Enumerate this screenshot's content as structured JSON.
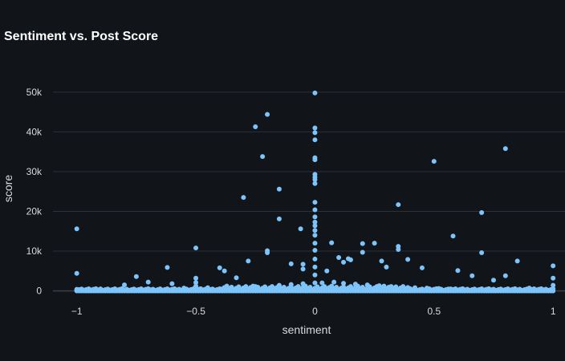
{
  "chart_data": {
    "type": "scatter",
    "title": "Sentiment vs. Post Score",
    "xlabel": "sentiment",
    "ylabel": "score",
    "xlim": [
      -1.1,
      1.05
    ],
    "ylim": [
      -1500,
      53000
    ],
    "xticks": [
      -1,
      -0.5,
      0,
      0.5,
      1
    ],
    "xtick_labels": [
      "−1",
      "−0.5",
      "0",
      "0.5",
      "1"
    ],
    "yticks": [
      0,
      10000,
      20000,
      30000,
      40000,
      50000
    ],
    "ytick_labels": [
      "0",
      "10k",
      "20k",
      "30k",
      "40k",
      "50k"
    ],
    "grid": true,
    "marker_color": "#7cc4fa",
    "series": [
      {
        "points": [
          [
            -1,
            15600
          ],
          [
            -1,
            4400
          ],
          [
            -1,
            400
          ],
          [
            -1,
            100
          ],
          [
            -0.5,
            10800
          ],
          [
            -0.5,
            3200
          ],
          [
            -0.5,
            2100
          ],
          [
            -0.5,
            1200
          ],
          [
            -0.3,
            23500
          ],
          [
            -0.25,
            41300
          ],
          [
            -0.22,
            33800
          ],
          [
            -0.2,
            44400
          ],
          [
            -0.15,
            25600
          ],
          [
            -0.15,
            18100
          ],
          [
            -0.2,
            10100
          ],
          [
            -0.2,
            9600
          ],
          [
            -0.06,
            15600
          ],
          [
            -0.05,
            6700
          ],
          [
            -0.05,
            5500
          ],
          [
            0,
            49800
          ],
          [
            0,
            41000
          ],
          [
            0,
            39800
          ],
          [
            0,
            38000
          ],
          [
            0,
            33500
          ],
          [
            0,
            33000
          ],
          [
            0,
            29300
          ],
          [
            0,
            28600
          ],
          [
            0,
            28000
          ],
          [
            0,
            27000
          ],
          [
            0,
            22300
          ],
          [
            0,
            20400
          ],
          [
            0,
            18600
          ],
          [
            0,
            17300
          ],
          [
            0,
            16400
          ],
          [
            0,
            15200
          ],
          [
            0,
            14000
          ],
          [
            0,
            12000
          ],
          [
            0,
            10200
          ],
          [
            0,
            8000
          ],
          [
            0,
            6000
          ],
          [
            0,
            4000
          ],
          [
            0,
            2000
          ],
          [
            0.07,
            12100
          ],
          [
            0.1,
            8400
          ],
          [
            0.12,
            7200
          ],
          [
            0.14,
            8100
          ],
          [
            0.15,
            7800
          ],
          [
            0.2,
            11900
          ],
          [
            0.25,
            12000
          ],
          [
            0.35,
            21700
          ],
          [
            0.35,
            11200
          ],
          [
            0.35,
            10400
          ],
          [
            0.5,
            32600
          ],
          [
            0.58,
            13800
          ],
          [
            0.7,
            19700
          ],
          [
            0.7,
            9600
          ],
          [
            0.8,
            35800
          ],
          [
            0.85,
            7500
          ],
          [
            1,
            6300
          ],
          [
            1,
            3200
          ],
          [
            1,
            1400
          ],
          [
            1,
            500
          ],
          [
            -0.9,
            500
          ],
          [
            -0.8,
            1500
          ],
          [
            -0.75,
            3600
          ],
          [
            -0.7,
            2200
          ],
          [
            -0.62,
            5900
          ],
          [
            -0.6,
            1800
          ],
          [
            -0.4,
            5800
          ],
          [
            -0.38,
            5000
          ],
          [
            -0.33,
            3300
          ],
          [
            -0.28,
            7500
          ],
          [
            -0.1,
            6800
          ],
          [
            0.05,
            5000
          ],
          [
            0.2,
            9700
          ],
          [
            0.28,
            7500
          ],
          [
            0.3,
            6000
          ],
          [
            0.39,
            7900
          ],
          [
            0.45,
            5800
          ],
          [
            0.6,
            5100
          ],
          [
            0.66,
            3800
          ],
          [
            0.75,
            2700
          ],
          [
            0.8,
            3800
          ],
          [
            0.9,
            700
          ],
          [
            0.95,
            300
          ],
          [
            -0.95,
            200
          ],
          [
            -0.85,
            300
          ],
          [
            -0.65,
            500
          ],
          [
            -0.55,
            700
          ],
          [
            -0.45,
            800
          ],
          [
            -0.35,
            900
          ],
          [
            -0.25,
            1100
          ],
          [
            -0.15,
            1400
          ],
          [
            -0.1,
            1600
          ],
          [
            -0.05,
            1800
          ],
          [
            0.03,
            2000
          ],
          [
            0.08,
            2200
          ],
          [
            0.12,
            1900
          ],
          [
            0.17,
            1700
          ],
          [
            0.22,
            1500
          ],
          [
            0.27,
            1300
          ],
          [
            0.32,
            1100
          ],
          [
            0.37,
            900
          ],
          [
            0.42,
            800
          ],
          [
            0.47,
            700
          ],
          [
            0.52,
            600
          ],
          [
            0.57,
            500
          ],
          [
            0.62,
            400
          ],
          [
            0.67,
            300
          ],
          [
            0.72,
            250
          ],
          [
            0.77,
            200
          ],
          [
            0.82,
            150
          ],
          [
            0.87,
            120
          ],
          [
            0.92,
            100
          ],
          [
            0.97,
            80
          ]
        ]
      }
    ]
  }
}
